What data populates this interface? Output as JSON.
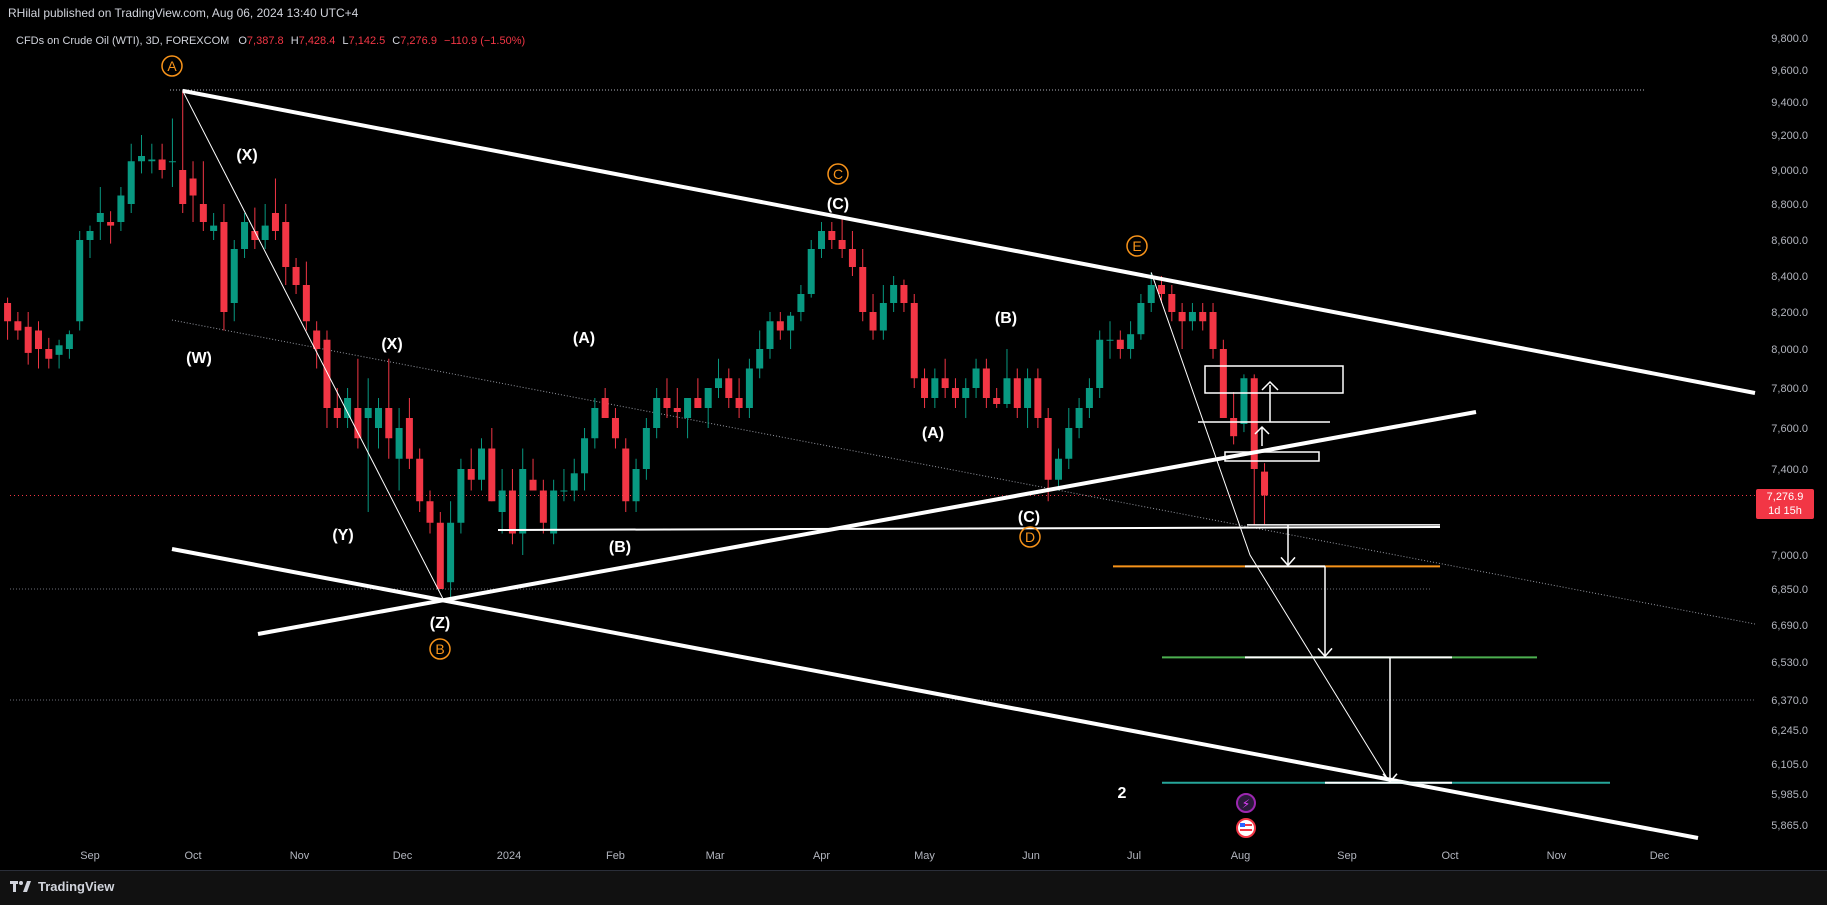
{
  "header": {
    "publisher": "RHilal published on TradingView.com, Aug 06, 2024 13:40 UTC+4"
  },
  "legend": {
    "symbol": "CFDs on Crude Oil (WTI), 3D, FOREXCOM",
    "open_label": "O",
    "open": "7,387.8",
    "high_label": "H",
    "high": "7,428.4",
    "low_label": "L",
    "low": "7,142.5",
    "close_label": "C",
    "close": "7,276.9",
    "change": "−110.9 (−1.50%)"
  },
  "price_badge": {
    "price": "7,276.9",
    "countdown": "1d 15h"
  },
  "footer": {
    "brand": "TradingView"
  },
  "colors": {
    "up": "#089981",
    "down": "#f23645",
    "background": "#000000",
    "wave_orange": "#f7931a",
    "target_orange": "#f7931a",
    "target_green": "#4caf50",
    "target_teal": "#26a69a"
  },
  "chart_data": {
    "type": "candlestick",
    "title": "CFDs on Crude Oil (WTI), 3D, FOREXCOM",
    "xlabel": "",
    "ylabel": "",
    "y_ticks": [
      9800,
      9600,
      9400,
      9200,
      9000,
      8800,
      8600,
      8400,
      8200,
      8000,
      7800,
      7600,
      7400,
      7000,
      6850,
      6690,
      6530,
      6370,
      6245,
      6105,
      5985,
      5865
    ],
    "y_tick_labels": [
      "9,800.0",
      "9,600.0",
      "9,400.0",
      "9,200.0",
      "9,000.0",
      "8,800.0",
      "8,600.0",
      "8,400.0",
      "8,200.0",
      "8,000.0",
      "7,800.0",
      "7,600.0",
      "7,400.0",
      "7,000.0",
      "6,850.0",
      "6,690.0",
      "6,530.0",
      "6,370.0",
      "6,245.0",
      "6,105.0",
      "5,985.0",
      "5,865.0"
    ],
    "x_ticks": [
      "2023-09-01",
      "2023-10-01",
      "2023-11-01",
      "2023-12-01",
      "2024-01-01",
      "2024-02-01",
      "2024-03-01",
      "2024-04-01",
      "2024-05-01",
      "2024-06-01",
      "2024-07-01",
      "2024-08-01",
      "2024-09-01",
      "2024-10-01",
      "2024-11-01",
      "2024-12-01"
    ],
    "x_tick_labels": [
      "Sep",
      "Oct",
      "Nov",
      "Dec",
      "2024",
      "Feb",
      "Mar",
      "Apr",
      "May",
      "Jun",
      "Jul",
      "Aug",
      "Sep",
      "Oct",
      "Nov",
      "Dec"
    ],
    "candles": [
      {
        "date": "2023-08-08",
        "o": 8250,
        "h": 8280,
        "l": 8050,
        "c": 8150
      },
      {
        "date": "2023-08-11",
        "o": 8150,
        "h": 8200,
        "l": 8050,
        "c": 8100
      },
      {
        "date": "2023-08-14",
        "o": 8120,
        "h": 8200,
        "l": 7920,
        "c": 7980
      },
      {
        "date": "2023-08-17",
        "o": 8100,
        "h": 8150,
        "l": 7900,
        "c": 8000
      },
      {
        "date": "2023-08-20",
        "o": 8000,
        "h": 8060,
        "l": 7900,
        "c": 7950
      },
      {
        "date": "2023-08-23",
        "o": 7970,
        "h": 8050,
        "l": 7900,
        "c": 8020
      },
      {
        "date": "2023-08-26",
        "o": 8000,
        "h": 8100,
        "l": 7950,
        "c": 8080
      },
      {
        "date": "2023-08-29",
        "o": 8150,
        "h": 8650,
        "l": 8100,
        "c": 8600
      },
      {
        "date": "2023-09-01",
        "o": 8600,
        "h": 8680,
        "l": 8500,
        "c": 8650
      },
      {
        "date": "2023-09-04",
        "o": 8700,
        "h": 8900,
        "l": 8600,
        "c": 8750
      },
      {
        "date": "2023-09-07",
        "o": 8700,
        "h": 8760,
        "l": 8580,
        "c": 8680
      },
      {
        "date": "2023-09-10",
        "o": 8700,
        "h": 8900,
        "l": 8650,
        "c": 8850
      },
      {
        "date": "2023-09-13",
        "o": 8800,
        "h": 9150,
        "l": 8750,
        "c": 9050
      },
      {
        "date": "2023-09-16",
        "o": 9050,
        "h": 9200,
        "l": 8980,
        "c": 9080
      },
      {
        "date": "2023-09-19",
        "o": 9050,
        "h": 9150,
        "l": 8980,
        "c": 9060
      },
      {
        "date": "2023-09-22",
        "o": 9060,
        "h": 9150,
        "l": 8950,
        "c": 9000
      },
      {
        "date": "2023-09-25",
        "o": 9050,
        "h": 9300,
        "l": 8900,
        "c": 9050
      },
      {
        "date": "2023-09-28",
        "o": 9000,
        "h": 9470,
        "l": 8750,
        "c": 8800
      },
      {
        "date": "2023-10-01",
        "o": 8950,
        "h": 9050,
        "l": 8700,
        "c": 8850
      },
      {
        "date": "2023-10-04",
        "o": 8800,
        "h": 9050,
        "l": 8650,
        "c": 8700
      },
      {
        "date": "2023-10-07",
        "o": 8650,
        "h": 8750,
        "l": 8600,
        "c": 8680
      },
      {
        "date": "2023-10-10",
        "o": 8700,
        "h": 8800,
        "l": 8100,
        "c": 8200
      },
      {
        "date": "2023-10-13",
        "o": 8250,
        "h": 8600,
        "l": 8150,
        "c": 8550
      },
      {
        "date": "2023-10-16",
        "o": 8550,
        "h": 8750,
        "l": 8500,
        "c": 8700
      },
      {
        "date": "2023-10-19",
        "o": 8650,
        "h": 8780,
        "l": 8550,
        "c": 8600
      },
      {
        "date": "2023-10-22",
        "o": 8600,
        "h": 8800,
        "l": 8550,
        "c": 8680
      },
      {
        "date": "2023-10-25",
        "o": 8750,
        "h": 8950,
        "l": 8600,
        "c": 8650
      },
      {
        "date": "2023-10-28",
        "o": 8700,
        "h": 8800,
        "l": 8350,
        "c": 8450
      },
      {
        "date": "2023-10-31",
        "o": 8450,
        "h": 8500,
        "l": 8300,
        "c": 8350
      },
      {
        "date": "2023-11-03",
        "o": 8350,
        "h": 8480,
        "l": 8100,
        "c": 8150
      },
      {
        "date": "2023-11-06",
        "o": 8100,
        "h": 8150,
        "l": 7900,
        "c": 8000
      },
      {
        "date": "2023-11-09",
        "o": 8050,
        "h": 8100,
        "l": 7600,
        "c": 7700
      },
      {
        "date": "2023-11-12",
        "o": 7700,
        "h": 7800,
        "l": 7600,
        "c": 7650
      },
      {
        "date": "2023-11-15",
        "o": 7650,
        "h": 7800,
        "l": 7600,
        "c": 7750
      },
      {
        "date": "2023-11-18",
        "o": 7700,
        "h": 7950,
        "l": 7500,
        "c": 7550
      },
      {
        "date": "2023-11-21",
        "o": 7650,
        "h": 7850,
        "l": 7200,
        "c": 7700
      },
      {
        "date": "2023-11-24",
        "o": 7600,
        "h": 7750,
        "l": 7500,
        "c": 7700
      },
      {
        "date": "2023-11-27",
        "o": 7700,
        "h": 7950,
        "l": 7450,
        "c": 7550
      },
      {
        "date": "2023-11-30",
        "o": 7450,
        "h": 7700,
        "l": 7300,
        "c": 7600
      },
      {
        "date": "2023-12-03",
        "o": 7650,
        "h": 7750,
        "l": 7400,
        "c": 7450
      },
      {
        "date": "2023-12-06",
        "o": 7450,
        "h": 7500,
        "l": 7200,
        "c": 7250
      },
      {
        "date": "2023-12-09",
        "o": 7250,
        "h": 7300,
        "l": 7100,
        "c": 7150
      },
      {
        "date": "2023-12-12",
        "o": 7150,
        "h": 7200,
        "l": 6850,
        "c": 6850
      },
      {
        "date": "2023-12-15",
        "o": 6880,
        "h": 7250,
        "l": 6800,
        "c": 7150
      },
      {
        "date": "2023-12-18",
        "o": 7150,
        "h": 7450,
        "l": 7100,
        "c": 7400
      },
      {
        "date": "2023-12-21",
        "o": 7400,
        "h": 7500,
        "l": 7300,
        "c": 7350
      },
      {
        "date": "2023-12-24",
        "o": 7350,
        "h": 7550,
        "l": 7300,
        "c": 7500
      },
      {
        "date": "2023-12-27",
        "o": 7500,
        "h": 7600,
        "l": 7250,
        "c": 7250
      },
      {
        "date": "2023-12-30",
        "o": 7200,
        "h": 7400,
        "l": 7100,
        "c": 7300
      },
      {
        "date": "2024-01-02",
        "o": 7300,
        "h": 7400,
        "l": 7050,
        "c": 7100
      },
      {
        "date": "2024-01-05",
        "o": 7100,
        "h": 7500,
        "l": 7000,
        "c": 7400
      },
      {
        "date": "2024-01-08",
        "o": 7350,
        "h": 7450,
        "l": 7300,
        "c": 7300
      },
      {
        "date": "2024-01-11",
        "o": 7300,
        "h": 7350,
        "l": 7100,
        "c": 7150
      },
      {
        "date": "2024-01-14",
        "o": 7100,
        "h": 7350,
        "l": 7050,
        "c": 7300
      },
      {
        "date": "2024-01-17",
        "o": 7300,
        "h": 7400,
        "l": 7250,
        "c": 7300
      },
      {
        "date": "2024-01-20",
        "o": 7300,
        "h": 7450,
        "l": 7250,
        "c": 7380
      },
      {
        "date": "2024-01-23",
        "o": 7380,
        "h": 7600,
        "l": 7300,
        "c": 7550
      },
      {
        "date": "2024-01-26",
        "o": 7550,
        "h": 7750,
        "l": 7500,
        "c": 7700
      },
      {
        "date": "2024-01-29",
        "o": 7750,
        "h": 7800,
        "l": 7650,
        "c": 7650
      },
      {
        "date": "2024-02-01",
        "o": 7650,
        "h": 7700,
        "l": 7500,
        "c": 7550
      },
      {
        "date": "2024-02-04",
        "o": 7500,
        "h": 7550,
        "l": 7200,
        "c": 7250
      },
      {
        "date": "2024-02-07",
        "o": 7250,
        "h": 7450,
        "l": 7200,
        "c": 7400
      },
      {
        "date": "2024-02-10",
        "o": 7400,
        "h": 7650,
        "l": 7350,
        "c": 7600
      },
      {
        "date": "2024-02-13",
        "o": 7600,
        "h": 7800,
        "l": 7550,
        "c": 7750
      },
      {
        "date": "2024-02-16",
        "o": 7750,
        "h": 7850,
        "l": 7650,
        "c": 7700
      },
      {
        "date": "2024-02-19",
        "o": 7700,
        "h": 7800,
        "l": 7600,
        "c": 7680
      },
      {
        "date": "2024-02-22",
        "o": 7650,
        "h": 7750,
        "l": 7550,
        "c": 7750
      },
      {
        "date": "2024-02-25",
        "o": 7750,
        "h": 7850,
        "l": 7700,
        "c": 7700
      },
      {
        "date": "2024-02-28",
        "o": 7700,
        "h": 7800,
        "l": 7600,
        "c": 7800
      },
      {
        "date": "2024-03-02",
        "o": 7800,
        "h": 7950,
        "l": 7750,
        "c": 7850
      },
      {
        "date": "2024-03-05",
        "o": 7850,
        "h": 7900,
        "l": 7700,
        "c": 7750
      },
      {
        "date": "2024-03-08",
        "o": 7750,
        "h": 7850,
        "l": 7650,
        "c": 7700
      },
      {
        "date": "2024-03-11",
        "o": 7700,
        "h": 7950,
        "l": 7650,
        "c": 7900
      },
      {
        "date": "2024-03-14",
        "o": 7900,
        "h": 8100,
        "l": 7850,
        "c": 8000
      },
      {
        "date": "2024-03-17",
        "o": 8000,
        "h": 8200,
        "l": 7950,
        "c": 8150
      },
      {
        "date": "2024-03-20",
        "o": 8150,
        "h": 8200,
        "l": 8050,
        "c": 8100
      },
      {
        "date": "2024-03-23",
        "o": 8100,
        "h": 8200,
        "l": 8000,
        "c": 8180
      },
      {
        "date": "2024-03-26",
        "o": 8200,
        "h": 8350,
        "l": 8150,
        "c": 8300
      },
      {
        "date": "2024-03-29",
        "o": 8300,
        "h": 8600,
        "l": 8280,
        "c": 8550
      },
      {
        "date": "2024-04-01",
        "o": 8550,
        "h": 8700,
        "l": 8500,
        "c": 8650
      },
      {
        "date": "2024-04-04",
        "o": 8650,
        "h": 8700,
        "l": 8550,
        "c": 8600
      },
      {
        "date": "2024-04-07",
        "o": 8600,
        "h": 8730,
        "l": 8500,
        "c": 8550
      },
      {
        "date": "2024-04-10",
        "o": 8550,
        "h": 8650,
        "l": 8400,
        "c": 8450
      },
      {
        "date": "2024-04-13",
        "o": 8450,
        "h": 8550,
        "l": 8150,
        "c": 8200
      },
      {
        "date": "2024-04-16",
        "o": 8200,
        "h": 8300,
        "l": 8050,
        "c": 8100
      },
      {
        "date": "2024-04-19",
        "o": 8100,
        "h": 8350,
        "l": 8050,
        "c": 8250
      },
      {
        "date": "2024-04-22",
        "o": 8250,
        "h": 8400,
        "l": 8200,
        "c": 8350
      },
      {
        "date": "2024-04-25",
        "o": 8350,
        "h": 8380,
        "l": 8200,
        "c": 8250
      },
      {
        "date": "2024-04-28",
        "o": 8250,
        "h": 8300,
        "l": 7800,
        "c": 7850
      },
      {
        "date": "2024-05-01",
        "o": 7850,
        "h": 7900,
        "l": 7700,
        "c": 7750
      },
      {
        "date": "2024-05-04",
        "o": 7750,
        "h": 7900,
        "l": 7700,
        "c": 7850
      },
      {
        "date": "2024-05-07",
        "o": 7850,
        "h": 7950,
        "l": 7750,
        "c": 7800
      },
      {
        "date": "2024-05-10",
        "o": 7800,
        "h": 7850,
        "l": 7700,
        "c": 7750
      },
      {
        "date": "2024-05-13",
        "o": 7750,
        "h": 7850,
        "l": 7650,
        "c": 7800
      },
      {
        "date": "2024-05-16",
        "o": 7800,
        "h": 7950,
        "l": 7750,
        "c": 7900
      },
      {
        "date": "2024-05-19",
        "o": 7900,
        "h": 7950,
        "l": 7700,
        "c": 7750
      },
      {
        "date": "2024-05-22",
        "o": 7750,
        "h": 7800,
        "l": 7700,
        "c": 7720
      },
      {
        "date": "2024-05-25",
        "o": 7720,
        "h": 8000,
        "l": 7700,
        "c": 7850
      },
      {
        "date": "2024-05-28",
        "o": 7850,
        "h": 7900,
        "l": 7650,
        "c": 7700
      },
      {
        "date": "2024-05-31",
        "o": 7700,
        "h": 7900,
        "l": 7600,
        "c": 7850
      },
      {
        "date": "2024-06-03",
        "o": 7850,
        "h": 7900,
        "l": 7600,
        "c": 7650
      },
      {
        "date": "2024-06-06",
        "o": 7650,
        "h": 7700,
        "l": 7250,
        "c": 7350
      },
      {
        "date": "2024-06-09",
        "o": 7350,
        "h": 7500,
        "l": 7300,
        "c": 7450
      },
      {
        "date": "2024-06-12",
        "o": 7450,
        "h": 7700,
        "l": 7400,
        "c": 7600
      },
      {
        "date": "2024-06-15",
        "o": 7600,
        "h": 7750,
        "l": 7550,
        "c": 7700
      },
      {
        "date": "2024-06-18",
        "o": 7700,
        "h": 7850,
        "l": 7650,
        "c": 7800
      },
      {
        "date": "2024-06-21",
        "o": 7800,
        "h": 8100,
        "l": 7750,
        "c": 8050
      },
      {
        "date": "2024-06-24",
        "o": 8050,
        "h": 8150,
        "l": 7950,
        "c": 8050
      },
      {
        "date": "2024-06-27",
        "o": 8050,
        "h": 8100,
        "l": 7950,
        "c": 8000
      },
      {
        "date": "2024-06-30",
        "o": 8000,
        "h": 8150,
        "l": 7950,
        "c": 8080
      },
      {
        "date": "2024-07-03",
        "o": 8080,
        "h": 8300,
        "l": 8050,
        "c": 8250
      },
      {
        "date": "2024-07-06",
        "o": 8250,
        "h": 8420,
        "l": 8200,
        "c": 8350
      },
      {
        "date": "2024-07-09",
        "o": 8350,
        "h": 8400,
        "l": 8250,
        "c": 8300
      },
      {
        "date": "2024-07-12",
        "o": 8300,
        "h": 8350,
        "l": 8150,
        "c": 8200
      },
      {
        "date": "2024-07-15",
        "o": 8200,
        "h": 8250,
        "l": 8000,
        "c": 8150
      },
      {
        "date": "2024-07-18",
        "o": 8150,
        "h": 8250,
        "l": 8100,
        "c": 8200
      },
      {
        "date": "2024-07-21",
        "o": 8200,
        "h": 8250,
        "l": 8100,
        "c": 8150
      },
      {
        "date": "2024-07-24",
        "o": 8200,
        "h": 8250,
        "l": 7950,
        "c": 8000
      },
      {
        "date": "2024-07-27",
        "o": 8000,
        "h": 8050,
        "l": 7650,
        "c": 7650
      },
      {
        "date": "2024-07-30",
        "o": 7650,
        "h": 7780,
        "l": 7520,
        "c": 7560
      },
      {
        "date": "2024-08-02",
        "o": 7620,
        "h": 7870,
        "l": 7580,
        "c": 7850
      },
      {
        "date": "2024-08-05",
        "o": 7850,
        "h": 7870,
        "l": 7140,
        "c": 7400
      },
      {
        "date": "2024-08-08",
        "o": 7387.8,
        "h": 7428.4,
        "l": 7142.5,
        "c": 7276.9
      }
    ],
    "wave_labels_white": [
      "(X)",
      "(W)",
      "(X)",
      "(Y)",
      "(Z)",
      "(A)",
      "(B)",
      "(C)",
      "(A)",
      "(B)",
      "(C)",
      "2"
    ],
    "wave_labels_orange": [
      "A",
      "B",
      "C",
      "D",
      "E"
    ],
    "wave_points": {
      "A": {
        "date": "2023-09-28",
        "price": 9470
      },
      "B": {
        "date": "2023-12-13",
        "price": 6800
      },
      "C": {
        "date": "2024-04-07",
        "price": 8730
      },
      "D": {
        "date": "2024-06-06",
        "price": 7250
      },
      "E": {
        "date": "2024-07-06",
        "price": 8420
      }
    },
    "target_levels": [
      7140,
      6950,
      6550,
      6030
    ],
    "last_price": 7276.9
  }
}
